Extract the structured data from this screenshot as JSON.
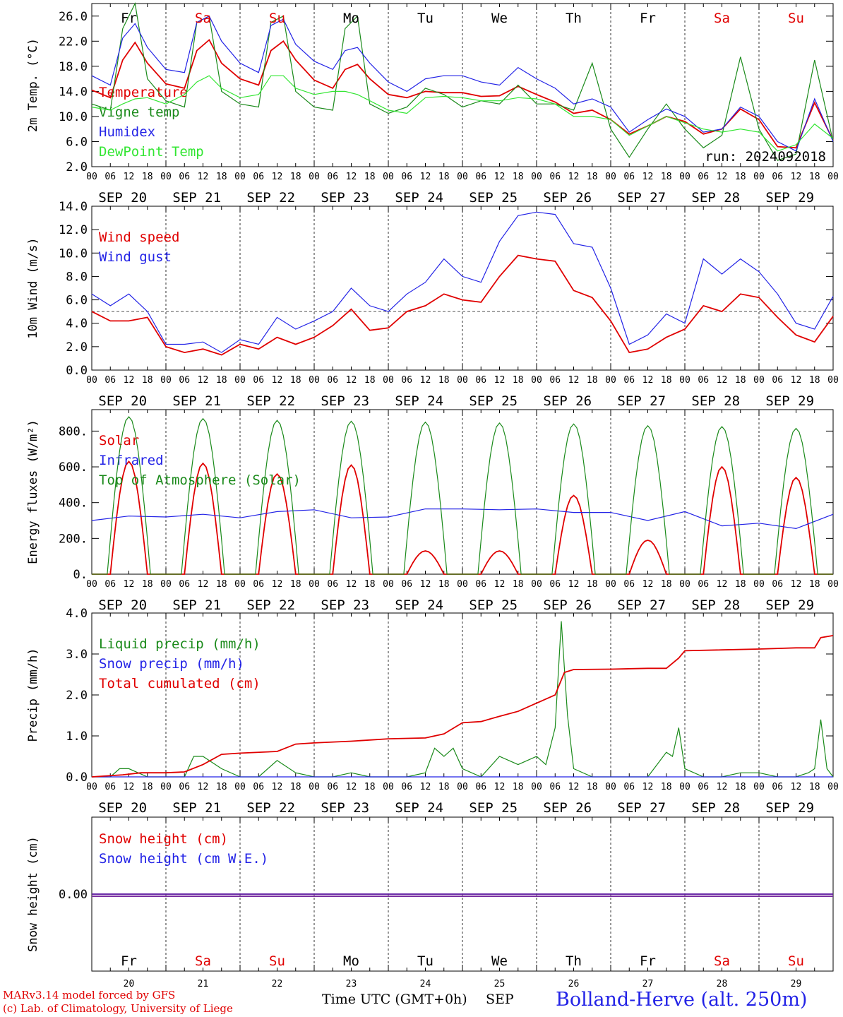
{
  "days": [
    {
      "date": "SEP 20",
      "num": "20",
      "dow": "Fr",
      "weekend": false
    },
    {
      "date": "SEP 21",
      "num": "21",
      "dow": "Sa",
      "weekend": true
    },
    {
      "date": "SEP 22",
      "num": "22",
      "dow": "Su",
      "weekend": true
    },
    {
      "date": "SEP 23",
      "num": "23",
      "dow": "Mo",
      "weekend": false
    },
    {
      "date": "SEP 24",
      "num": "24",
      "dow": "Tu",
      "weekend": false
    },
    {
      "date": "SEP 25",
      "num": "25",
      "dow": "We",
      "weekend": false
    },
    {
      "date": "SEP 26",
      "num": "26",
      "dow": "Th",
      "weekend": false
    },
    {
      "date": "SEP 27",
      "num": "27",
      "dow": "Fr",
      "weekend": false
    },
    {
      "date": "SEP 28",
      "num": "28",
      "dow": "Sa",
      "weekend": true
    },
    {
      "date": "SEP 29",
      "num": "29",
      "dow": "Su",
      "weekend": true
    }
  ],
  "hour_labels": [
    "00",
    "06",
    "12",
    "18"
  ],
  "final_hour_label": "00",
  "colors": {
    "red": "#e00000",
    "green": "#1a8a1a",
    "blue": "#2323e6",
    "light_green": "#33e633",
    "purple": "#7a2fa0",
    "weekend": "#e00000"
  },
  "chart_data": [
    {
      "type": "line",
      "ylabel": "2m Temp. (°C)",
      "ylim": [
        2,
        28
      ],
      "yticks": [
        "2.0",
        "6.0",
        "10.0",
        "14.0",
        "18.0",
        "22.0",
        "26.0"
      ],
      "ytick_values": [
        2,
        6,
        10,
        14,
        18,
        22,
        26
      ],
      "annotation": "run: 2024092018",
      "x_hours": [
        0,
        6,
        10,
        14,
        18,
        24,
        30,
        34,
        38,
        42,
        48,
        54,
        58,
        62,
        66,
        72,
        78,
        82,
        86,
        90,
        96,
        102,
        108,
        114,
        120,
        126,
        132,
        138,
        144,
        150,
        156,
        162,
        168,
        174,
        180,
        186,
        192,
        198,
        204,
        210,
        216,
        222,
        228,
        234,
        240
      ],
      "series": [
        {
          "name": "Temperature",
          "color": "red",
          "values": [
            14.2,
            13,
            19,
            21.8,
            18.5,
            15.2,
            14.5,
            20.5,
            22.2,
            18.5,
            16,
            15,
            20.5,
            22,
            19,
            15.8,
            14.5,
            17.5,
            18.3,
            16,
            13.5,
            13,
            14,
            13.8,
            13.8,
            13.2,
            13.3,
            14.8,
            13.5,
            12.3,
            10.5,
            11,
            9.5,
            7.2,
            8.5,
            10,
            9.2,
            7.2,
            8,
            11.2,
            9.5,
            5.2,
            5,
            12.2,
            6.2
          ]
        },
        {
          "name": "Vigne temp",
          "color": "green",
          "values": [
            12,
            11,
            24,
            28,
            16,
            12.5,
            11.5,
            25,
            26,
            14,
            12,
            11.5,
            25,
            26,
            14,
            11.5,
            11,
            24,
            26,
            12,
            10.5,
            11.5,
            14.5,
            13.5,
            11.5,
            12.5,
            12,
            15,
            12,
            12,
            11,
            18.5,
            8,
            3.5,
            8,
            12,
            8,
            5,
            7,
            19.5,
            8,
            3,
            4,
            19,
            6
          ]
        },
        {
          "name": "Humidex",
          "color": "blue",
          "values": [
            16.5,
            15,
            22.5,
            24.8,
            21,
            17.5,
            17,
            25,
            26,
            22,
            18.5,
            17,
            24.5,
            25.5,
            21.5,
            18.8,
            17.5,
            20.5,
            21,
            18.5,
            15.5,
            14,
            16,
            16.5,
            16.5,
            15.5,
            15,
            17.8,
            16,
            14.5,
            12,
            12.8,
            11.5,
            7.5,
            9.5,
            11.2,
            10,
            7.5,
            8,
            11.5,
            10,
            6,
            4.5,
            12.8,
            6
          ]
        },
        {
          "name": "DewPoint Temp",
          "color": "light_green",
          "values": [
            11.5,
            11,
            12,
            12.8,
            13,
            12,
            13.5,
            15.5,
            16.5,
            14.5,
            13,
            13.5,
            16.5,
            16.5,
            14.5,
            13.5,
            14,
            14,
            13.5,
            12.5,
            11,
            10.5,
            13,
            13.2,
            13,
            12.5,
            12.5,
            13,
            12.8,
            12,
            10,
            10,
            9.5,
            7,
            8.5,
            10,
            9,
            8,
            7.5,
            8,
            7.5,
            4.5,
            5.5,
            8.8,
            6.5
          ]
        }
      ]
    },
    {
      "type": "line",
      "ylabel": "10m Wind (m/s)",
      "ylim": [
        0,
        14
      ],
      "yticks": [
        "0.0",
        "2.0",
        "4.0",
        "6.0",
        "8.0",
        "10.0",
        "12.0",
        "14.0"
      ],
      "ytick_values": [
        0,
        2,
        4,
        6,
        8,
        10,
        12,
        14
      ],
      "reference_line": 5,
      "x_hours": [
        0,
        6,
        12,
        18,
        24,
        30,
        36,
        42,
        48,
        54,
        60,
        66,
        72,
        78,
        84,
        90,
        96,
        102,
        108,
        114,
        120,
        126,
        132,
        138,
        144,
        150,
        156,
        162,
        168,
        174,
        180,
        186,
        192,
        198,
        204,
        210,
        216,
        222,
        228,
        234,
        240
      ],
      "series": [
        {
          "name": "Wind speed",
          "color": "red",
          "values": [
            5,
            4.2,
            4.2,
            4.5,
            2,
            1.5,
            1.8,
            1.3,
            2.2,
            1.8,
            2.8,
            2.2,
            2.8,
            3.8,
            5.2,
            3.4,
            3.6,
            5,
            5.5,
            6.5,
            6,
            5.8,
            8,
            9.8,
            9.5,
            9.3,
            6.8,
            6.2,
            4.2,
            1.5,
            1.8,
            2.8,
            3.5,
            5.5,
            5,
            6.5,
            6.2,
            4.5,
            3,
            2.4,
            4.6
          ]
        },
        {
          "name": "Wind gust",
          "color": "blue",
          "values": [
            6.5,
            5.5,
            6.5,
            5,
            2.2,
            2.2,
            2.4,
            1.5,
            2.6,
            2.2,
            4.5,
            3.5,
            4.2,
            5,
            7,
            5.5,
            5,
            6.5,
            7.5,
            9.5,
            8,
            7.5,
            11,
            13.2,
            13.5,
            13.3,
            10.8,
            10.5,
            7,
            2.2,
            3,
            4.8,
            4,
            9.5,
            8.2,
            9.5,
            8.4,
            6.5,
            4,
            3.5,
            6.3
          ]
        }
      ]
    },
    {
      "type": "line",
      "ylabel": "Energy fluxes (W/m²)",
      "ylim": [
        0,
        920
      ],
      "yticks": [
        "0.",
        "200.",
        "400.",
        "600.",
        "800."
      ],
      "ytick_values": [
        0,
        200,
        400,
        600,
        800
      ],
      "x_hours": [
        0,
        12,
        24,
        36,
        48,
        60,
        72,
        84,
        96,
        108,
        120,
        132,
        144,
        156,
        168,
        180,
        192,
        204,
        216,
        228,
        240
      ],
      "series": [
        {
          "name": "Solar",
          "color": "red",
          "daily_peaks": [
            630,
            620,
            560,
            610,
            130,
            130,
            440,
            190,
            600,
            540
          ]
        },
        {
          "name": "Infrared",
          "color": "blue",
          "values": [
            300,
            325,
            320,
            335,
            315,
            350,
            360,
            315,
            320,
            365,
            365,
            360,
            365,
            345,
            345,
            300,
            350,
            270,
            285,
            255,
            335
          ]
        },
        {
          "name": "Top of Atmosphere (Solar)",
          "color": "green",
          "daily_peaks": [
            880,
            870,
            860,
            855,
            850,
            845,
            840,
            830,
            825,
            815
          ]
        }
      ]
    },
    {
      "type": "line",
      "ylabel": "Precip (mm/h)",
      "ylim": [
        0,
        4
      ],
      "yticks": [
        "0.0",
        "1.0",
        "2.0",
        "3.0",
        "4.0"
      ],
      "ytick_values": [
        0,
        1,
        2,
        3,
        4
      ],
      "series": [
        {
          "name": "Liquid precip (mm/h)",
          "color": "green",
          "x_hours": [
            0,
            6,
            9,
            12,
            15,
            18,
            24,
            30,
            33,
            36,
            42,
            48,
            54,
            60,
            66,
            72,
            78,
            84,
            90,
            96,
            102,
            108,
            111,
            114,
            117,
            120,
            126,
            132,
            138,
            144,
            147,
            150,
            152,
            154,
            156,
            162,
            168,
            174,
            180,
            186,
            188,
            190,
            192,
            198,
            204,
            210,
            216,
            222,
            228,
            232,
            234,
            236,
            238,
            240
          ],
          "values": [
            0,
            0,
            0.2,
            0.2,
            0.1,
            0,
            0,
            0,
            0.5,
            0.5,
            0.2,
            0,
            0,
            0.4,
            0.1,
            0,
            0,
            0.1,
            0,
            0,
            0,
            0.1,
            0.7,
            0.5,
            0.7,
            0.2,
            0,
            0.5,
            0.3,
            0.5,
            0.3,
            1.2,
            3.8,
            1.5,
            0.2,
            0,
            0,
            0,
            0,
            0.6,
            0.5,
            1.2,
            0.2,
            0,
            0,
            0.1,
            0.1,
            0,
            0,
            0.1,
            0.2,
            1.4,
            0.2,
            0
          ]
        },
        {
          "name": "Snow precip (mm/h)",
          "color": "blue",
          "x_hours": [
            0,
            240
          ],
          "values": [
            0,
            0
          ]
        },
        {
          "name": "Total cumulated (cm)",
          "color": "red",
          "x_hours": [
            0,
            10,
            16,
            24,
            30,
            36,
            42,
            48,
            60,
            66,
            72,
            84,
            90,
            96,
            108,
            114,
            120,
            126,
            132,
            138,
            144,
            147,
            150,
            153,
            156,
            168,
            180,
            186,
            190,
            192,
            204,
            216,
            228,
            234,
            236,
            240
          ],
          "values": [
            0,
            0.05,
            0.1,
            0.1,
            0.12,
            0.3,
            0.55,
            0.58,
            0.62,
            0.8,
            0.83,
            0.87,
            0.9,
            0.93,
            0.95,
            1.05,
            1.32,
            1.35,
            1.48,
            1.6,
            1.8,
            1.9,
            2.0,
            2.55,
            2.62,
            2.63,
            2.65,
            2.65,
            2.9,
            3.08,
            3.1,
            3.12,
            3.15,
            3.15,
            3.4,
            3.45
          ]
        }
      ]
    },
    {
      "type": "line",
      "ylabel": "Snow height (cm)",
      "ylim": [
        -1,
        1
      ],
      "yticks": [
        "0.00"
      ],
      "ytick_values": [
        0
      ],
      "x_hours": [
        0,
        240
      ],
      "series": [
        {
          "name": "Snow height (cm)",
          "color": "red",
          "values": [
            0,
            0
          ]
        },
        {
          "name": "Snow height (cm W.E.)",
          "color": "blue",
          "values": [
            0,
            0
          ]
        }
      ]
    }
  ],
  "footer": {
    "credit_line1": "MARv3.14 model forced by GFS",
    "credit_line2": "(c) Lab. of Climatology, University of Liege",
    "xlabel": "Time UTC (GMT+0h)",
    "month": "SEP",
    "station": "Bolland-Herve (alt. 250m)"
  }
}
